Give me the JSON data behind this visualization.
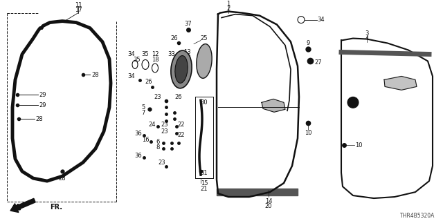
{
  "diagram_code": "THR4B5320A",
  "bg_color": "#ffffff",
  "line_color": "#111111",
  "text_color": "#111111"
}
